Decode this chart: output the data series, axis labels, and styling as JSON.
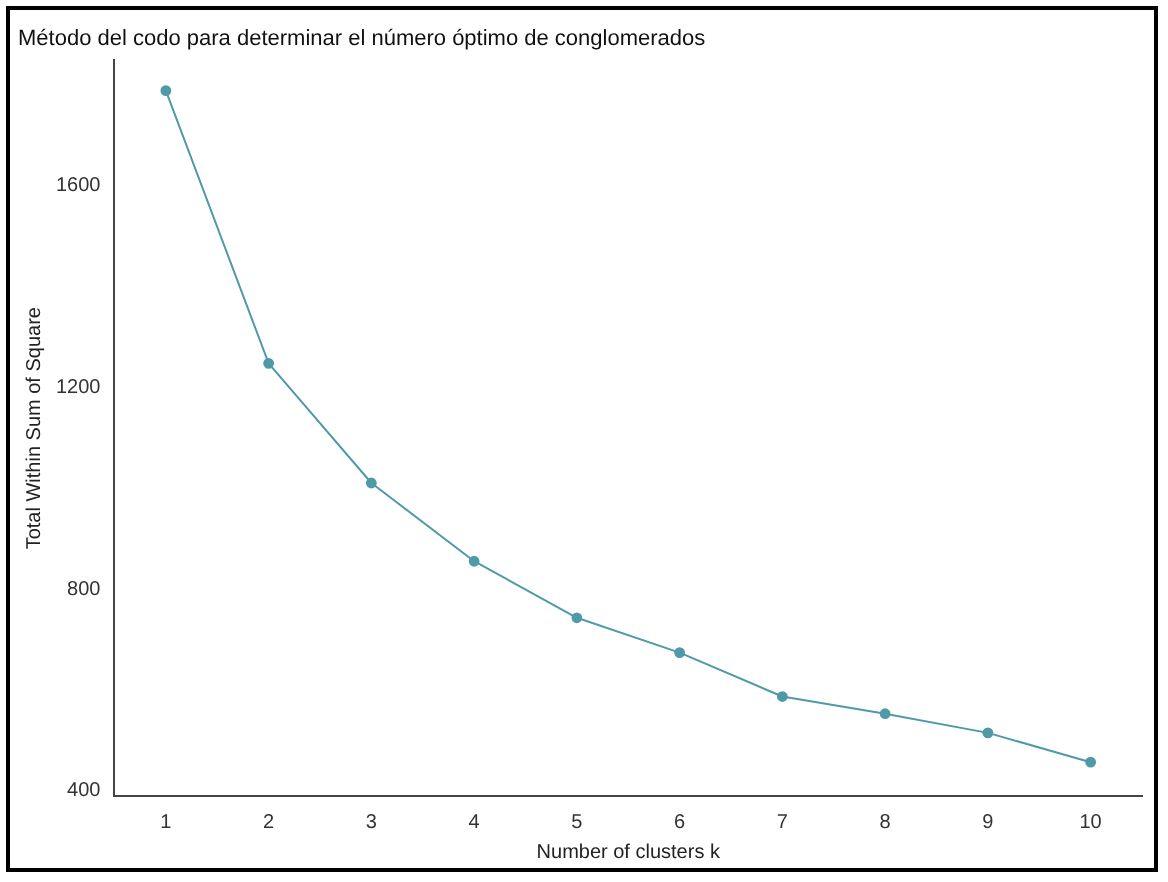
{
  "chart_data": {
    "type": "line",
    "title": "Método del codo para determinar el número óptimo de conglomerados",
    "xlabel": "Number of clusters k",
    "ylabel": "Total Within Sum of Square",
    "categories": [
      "1",
      "2",
      "3",
      "4",
      "5",
      "6",
      "7",
      "8",
      "9",
      "10"
    ],
    "series": [
      {
        "color": "#4f9aa8",
        "values": [
          1787,
          1247,
          1010,
          855,
          743,
          674,
          587,
          553,
          515,
          457
        ]
      }
    ],
    "ylim": [
      390,
      1847
    ],
    "yticks": [
      400,
      800,
      1200,
      1600
    ],
    "grid": false,
    "legend": false,
    "marker": "circle",
    "line_style": "solid"
  }
}
